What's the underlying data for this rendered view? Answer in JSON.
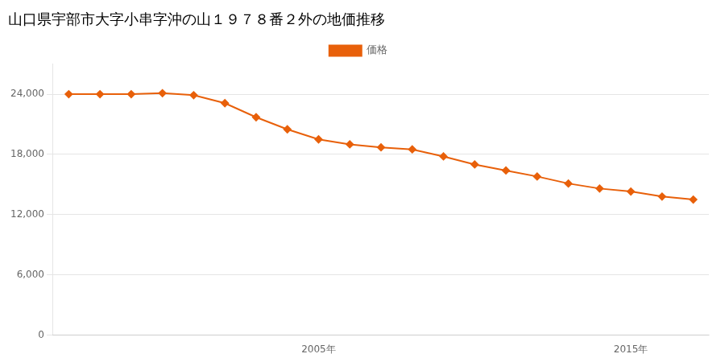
{
  "chart_data": {
    "type": "line",
    "title": "山口県宇部市大字小串字沖の山１９７８番２外の地価推移",
    "x": [
      1997,
      1998,
      1999,
      2000,
      2001,
      2002,
      2003,
      2004,
      2005,
      2006,
      2007,
      2008,
      2009,
      2010,
      2011,
      2012,
      2013,
      2014,
      2015,
      2016,
      2017
    ],
    "series": [
      {
        "name": "価格",
        "color": "#E8600A",
        "marker": "diamond",
        "values": [
          24000,
          24000,
          24000,
          24100,
          23900,
          23100,
          21700,
          20500,
          19500,
          19000,
          18700,
          18500,
          17800,
          17000,
          16400,
          15800,
          15100,
          14600,
          14300,
          13800,
          13500
        ]
      }
    ],
    "xlim": [
      1996.5,
      2017.5
    ],
    "xticks": [
      {
        "value": 2005,
        "label": "2005年"
      },
      {
        "value": 2015,
        "label": "2015年"
      }
    ],
    "ylim": [
      0,
      27000
    ],
    "yticks": [
      0,
      {
        "value": 6000,
        "label": "6,000"
      },
      {
        "value": 12000,
        "label": "12,000"
      },
      {
        "value": 18000,
        "label": "18,000"
      },
      {
        "value": 24000,
        "label": "24,000"
      }
    ],
    "grid": "y",
    "legend": "top"
  }
}
